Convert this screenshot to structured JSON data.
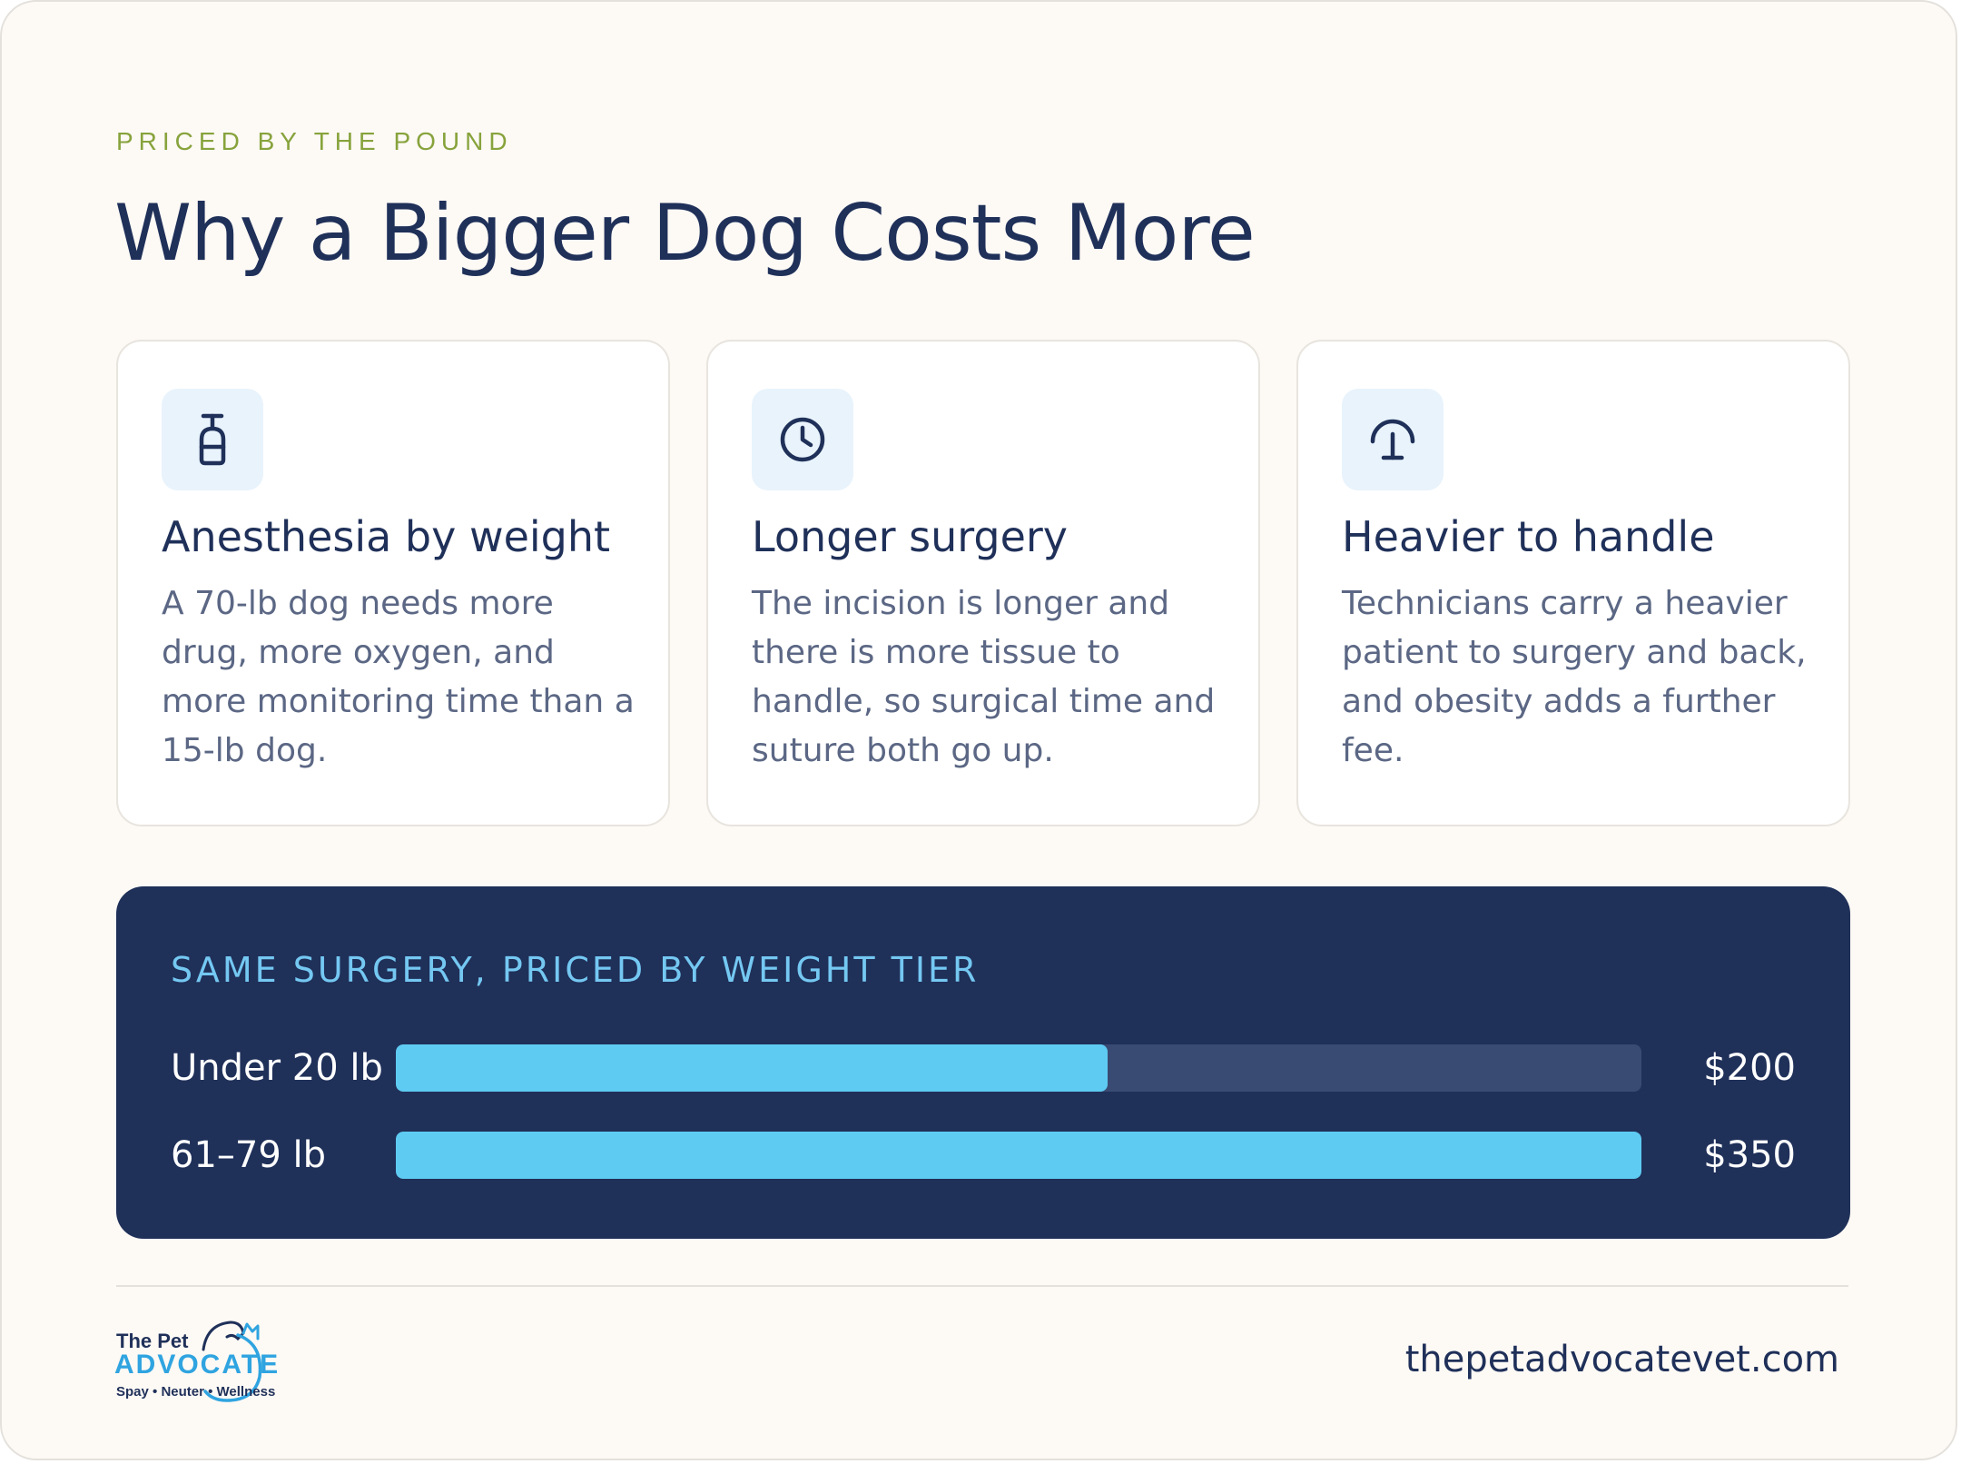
{
  "eyebrow": "PRICED BY THE POUND",
  "title": "Why a Bigger Dog Costs More",
  "cards": [
    {
      "icon": "anesthesia-bottle-icon",
      "heading": "Anesthesia by weight",
      "body": "A 70-lb dog needs more drug, more oxygen, and more monitoring time than a 15-lb dog."
    },
    {
      "icon": "clock-icon",
      "heading": "Longer surgery",
      "body": "The incision is longer and there is more tissue to handle, so surgical time and suture both go up."
    },
    {
      "icon": "lift-handle-icon",
      "heading": "Heavier to handle",
      "body": "Technicians carry a heavier patient to surgery and back, and obesity adds a further fee."
    }
  ],
  "pricing": {
    "title": "SAME SURGERY, PRICED BY WEIGHT TIER",
    "max_value": 350,
    "tiers": [
      {
        "label": "Under 20 lb",
        "price": "$200",
        "value": 200
      },
      {
        "label": "61–79 lb",
        "price": "$350",
        "value": 350
      }
    ]
  },
  "footer": {
    "logo": {
      "line1": "The Pet",
      "line2": "ADVOCATE",
      "line3": "Spay • Neuter • Wellness"
    },
    "website": "thepetadvocatevet.com"
  },
  "colors": {
    "navy": "#1f3059",
    "accent": "#5ecbf2",
    "eyebrow": "#87a33c"
  }
}
